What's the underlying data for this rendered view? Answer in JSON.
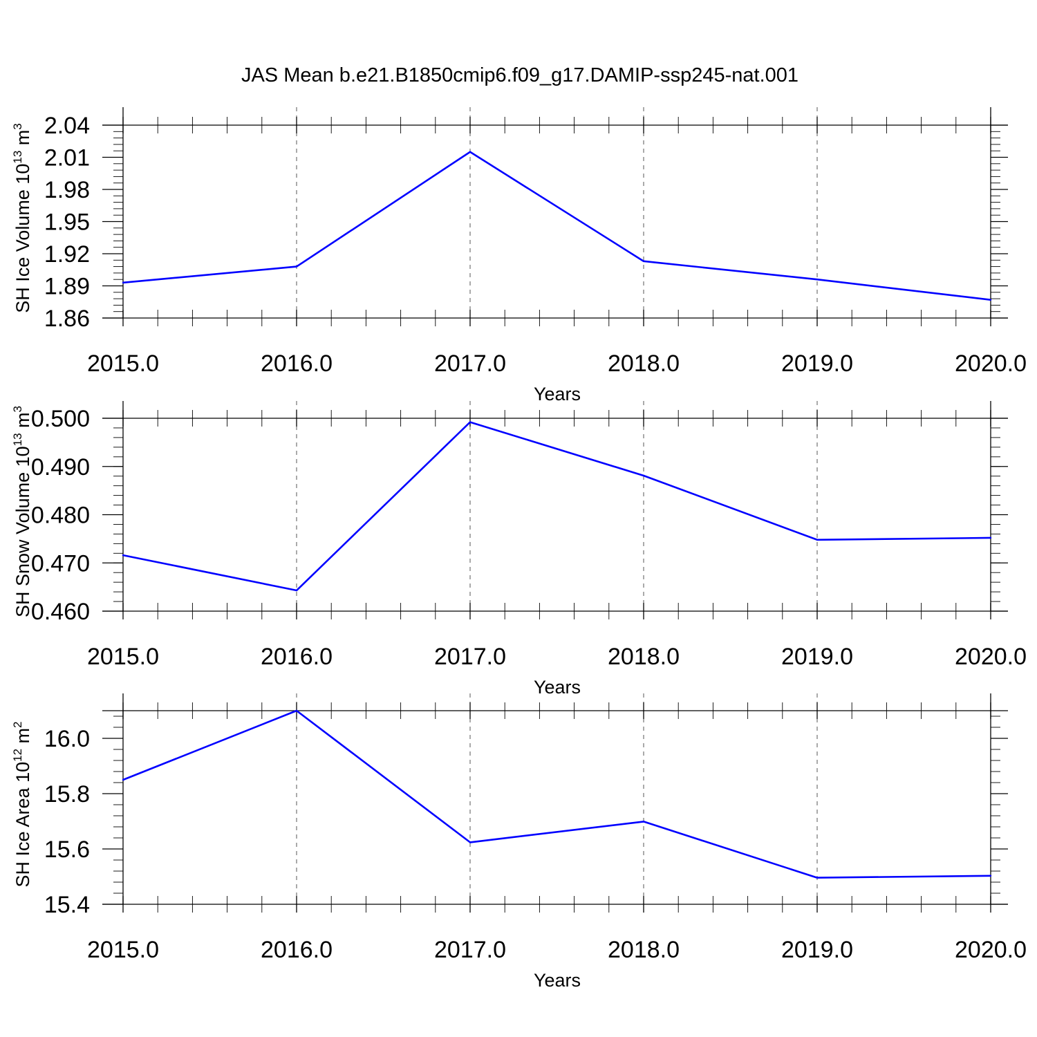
{
  "title": "JAS Mean b.e21.B1850cmip6.f09_g17.DAMIP-ssp245-nat.001",
  "line_color": "#0000ff",
  "chart_data": [
    {
      "type": "line",
      "xlabel": "Years",
      "ylabel": {
        "text": "SH Ice Volume 10",
        "sup": "13",
        "unit": " m",
        "unit_sup": "3"
      },
      "x": [
        2015,
        2016,
        2017,
        2018,
        2019,
        2020
      ],
      "x_tick_labels": [
        "2015.0",
        "2016.0",
        "2017.0",
        "2018.0",
        "2019.0",
        "2020.0"
      ],
      "series": [
        {
          "values": [
            1.893,
            1.908,
            2.015,
            1.913,
            1.896,
            1.877
          ]
        }
      ],
      "yticks": [
        1.86,
        1.89,
        1.92,
        1.95,
        1.98,
        2.01,
        2.04
      ],
      "y_tick_labels": [
        "1.86",
        "1.89",
        "1.92",
        "1.95",
        "1.98",
        "2.01",
        "2.04"
      ],
      "xlim": [
        2015,
        2020
      ],
      "ylim": [
        1.86,
        2.04
      ],
      "grid": "vertical dashed"
    },
    {
      "type": "line",
      "xlabel": "Years",
      "ylabel": {
        "text": "SH Snow Volume 10",
        "sup": "13",
        "unit": " m",
        "unit_sup": "3"
      },
      "x": [
        2015,
        2016,
        2017,
        2018,
        2019,
        2020
      ],
      "x_tick_labels": [
        "2015.0",
        "2016.0",
        "2017.0",
        "2018.0",
        "2019.0",
        "2020.0"
      ],
      "series": [
        {
          "values": [
            0.4716,
            0.4643,
            0.4992,
            0.4881,
            0.4748,
            0.4752
          ]
        }
      ],
      "yticks": [
        0.46,
        0.47,
        0.48,
        0.49,
        0.5
      ],
      "y_tick_labels": [
        "0.460",
        "0.470",
        "0.480",
        "0.490",
        "0.500"
      ],
      "xlim": [
        2015,
        2020
      ],
      "ylim": [
        0.46,
        0.5
      ],
      "grid": "vertical dashed"
    },
    {
      "type": "line",
      "xlabel": "Years",
      "ylabel": {
        "text": "SH Ice Area 10",
        "sup": "12",
        "unit": " m",
        "unit_sup": "2"
      },
      "x": [
        2015,
        2016,
        2017,
        2018,
        2019,
        2020
      ],
      "x_tick_labels": [
        "2015.0",
        "2016.0",
        "2017.0",
        "2018.0",
        "2019.0",
        "2020.0"
      ],
      "series": [
        {
          "values": [
            15.85,
            16.1,
            15.624,
            15.699,
            15.496,
            15.503
          ]
        }
      ],
      "yticks": [
        15.4,
        15.6,
        15.8,
        16.0
      ],
      "y_tick_labels": [
        "15.4",
        "15.6",
        "15.8",
        "16.0"
      ],
      "xlim": [
        2015,
        2020
      ],
      "ylim": [
        15.4,
        16.1
      ],
      "grid": "vertical dashed"
    }
  ]
}
